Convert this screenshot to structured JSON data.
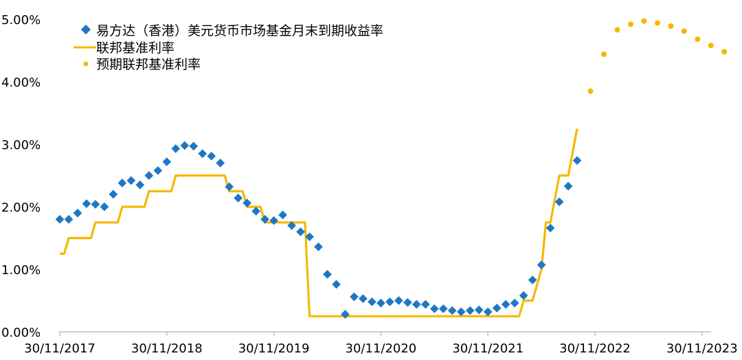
{
  "chart_data": {
    "type": "line",
    "title": "",
    "xlabel": "",
    "ylabel": "",
    "x_tick_labels": [
      "30/11/2017",
      "30/11/2018",
      "30/11/2019",
      "30/11/2020",
      "30/11/2021",
      "30/11/2022",
      "30/11/2023"
    ],
    "y_tick_labels": [
      "0.00%",
      "1.00%",
      "2.00%",
      "3.00%",
      "4.00%",
      "5.00%"
    ],
    "ylim": [
      0,
      5
    ],
    "xlim_months": [
      0,
      72
    ],
    "grid": false,
    "legend_position": "top-left",
    "series": [
      {
        "name": "易方达（香港）美元货币市场基金月末到期收益率",
        "marker": "diamond",
        "color": "#1F77C4",
        "points": [
          [
            0,
            1.8
          ],
          [
            1,
            1.8
          ],
          [
            2,
            1.9
          ],
          [
            3,
            2.05
          ],
          [
            4,
            2.04
          ],
          [
            5,
            2.0
          ],
          [
            6,
            2.2
          ],
          [
            7,
            2.38
          ],
          [
            8,
            2.42
          ],
          [
            9,
            2.35
          ],
          [
            10,
            2.5
          ],
          [
            11,
            2.58
          ],
          [
            12,
            2.72
          ],
          [
            13,
            2.93
          ],
          [
            14,
            2.98
          ],
          [
            15,
            2.97
          ],
          [
            16,
            2.85
          ],
          [
            17,
            2.81
          ],
          [
            18,
            2.7
          ],
          [
            19,
            2.32
          ],
          [
            20,
            2.14
          ],
          [
            21,
            2.06
          ],
          [
            22,
            1.93
          ],
          [
            23,
            1.8
          ],
          [
            24,
            1.78
          ],
          [
            25,
            1.87
          ],
          [
            26,
            1.7
          ],
          [
            27,
            1.6
          ],
          [
            28,
            1.52
          ],
          [
            29,
            1.36
          ],
          [
            30,
            0.92
          ],
          [
            31,
            0.76
          ],
          [
            32,
            0.28
          ],
          [
            33,
            0.56
          ],
          [
            34,
            0.53
          ],
          [
            35,
            0.48
          ],
          [
            36,
            0.46
          ],
          [
            37,
            0.48
          ],
          [
            38,
            0.5
          ],
          [
            39,
            0.47
          ],
          [
            40,
            0.44
          ],
          [
            41,
            0.44
          ],
          [
            42,
            0.37
          ],
          [
            43,
            0.37
          ],
          [
            44,
            0.34
          ],
          [
            45,
            0.32
          ],
          [
            46,
            0.34
          ],
          [
            47,
            0.35
          ],
          [
            48,
            0.32
          ],
          [
            49,
            0.38
          ],
          [
            50,
            0.44
          ],
          [
            51,
            0.46
          ],
          [
            52,
            0.58
          ],
          [
            53,
            0.83
          ],
          [
            54,
            1.07
          ],
          [
            55,
            1.66
          ],
          [
            56,
            2.08
          ],
          [
            57,
            2.33
          ],
          [
            58,
            2.74
          ]
        ]
      },
      {
        "name": "联邦基准利率",
        "style": "step-line",
        "color": "#F5B800",
        "points": [
          [
            0,
            1.25
          ],
          [
            0.5,
            1.25
          ],
          [
            1,
            1.5
          ],
          [
            3.5,
            1.5
          ],
          [
            4,
            1.75
          ],
          [
            6.5,
            1.75
          ],
          [
            7,
            2.0
          ],
          [
            9.5,
            2.0
          ],
          [
            10,
            2.25
          ],
          [
            12.5,
            2.25
          ],
          [
            13,
            2.5
          ],
          [
            18.5,
            2.5
          ],
          [
            19,
            2.25
          ],
          [
            20.5,
            2.25
          ],
          [
            21,
            2.0
          ],
          [
            22.5,
            2.0
          ],
          [
            23,
            1.75
          ],
          [
            27.5,
            1.75
          ],
          [
            28,
            0.25
          ],
          [
            51.5,
            0.25
          ],
          [
            52,
            0.5
          ],
          [
            53,
            0.5
          ],
          [
            54,
            1.0
          ],
          [
            54.5,
            1.75
          ],
          [
            55,
            1.75
          ],
          [
            56,
            2.5
          ],
          [
            57,
            2.5
          ],
          [
            58,
            3.25
          ]
        ]
      },
      {
        "name": "预期联邦基准利率",
        "marker": "dot",
        "color": "#F5B800",
        "points": [
          [
            59.5,
            3.85
          ],
          [
            61,
            4.44
          ],
          [
            62.5,
            4.83
          ],
          [
            64,
            4.92
          ],
          [
            65.5,
            4.97
          ],
          [
            67,
            4.94
          ],
          [
            68.5,
            4.89
          ],
          [
            70,
            4.81
          ],
          [
            71.5,
            4.68
          ],
          [
            73,
            4.58
          ],
          [
            74.5,
            4.48
          ]
        ]
      }
    ]
  }
}
